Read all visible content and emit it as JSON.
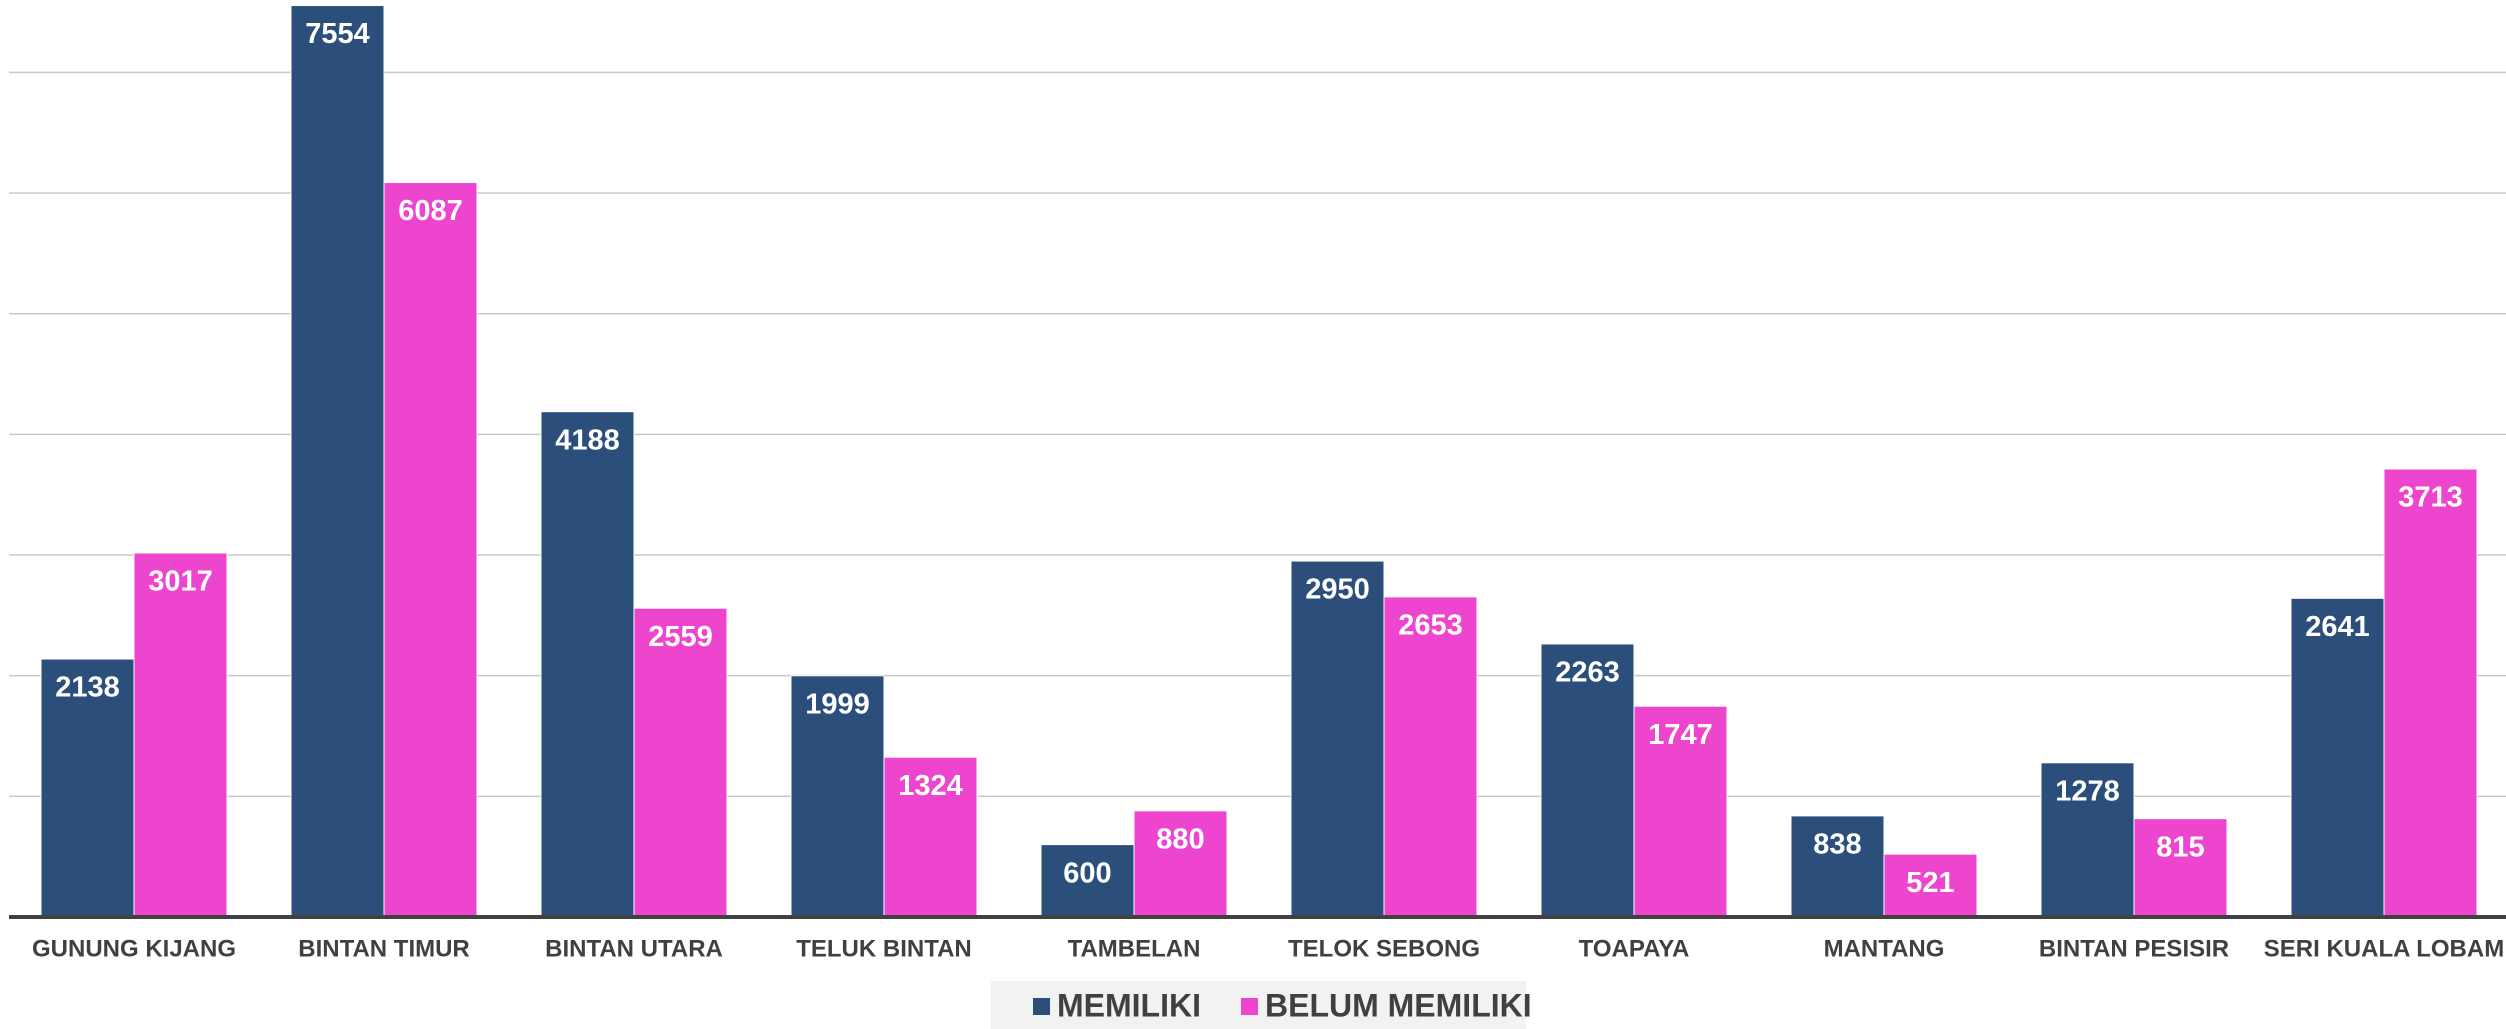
{
  "chart_data": {
    "type": "bar",
    "categories": [
      "GUNUNG KIJANG",
      "BINTAN TIMUR",
      "BINTAN UTARA",
      "TELUK BINTAN",
      "TAMBELAN",
      "TELOK SEBONG",
      "TOAPAYA",
      "MANTANG",
      "BINTAN PESISIR",
      "SERI KUALA LOBAM"
    ],
    "series": [
      {
        "name": "MEMILIKI",
        "color": "#2b4f7a",
        "values": [
          2138,
          7554,
          4188,
          1999,
          600,
          2950,
          2263,
          838,
          1278,
          2641
        ]
      },
      {
        "name": "BELUM MEMILIKI",
        "color": "#ee45cf",
        "values": [
          3017,
          6087,
          2559,
          1324,
          880,
          2653,
          1747,
          521,
          815,
          3713
        ]
      }
    ],
    "ylim": [
      0,
      7600
    ],
    "yticks": [
      1000,
      2000,
      3000,
      4000,
      5000,
      6000,
      7000
    ],
    "grid": true,
    "legend": "bottom"
  }
}
